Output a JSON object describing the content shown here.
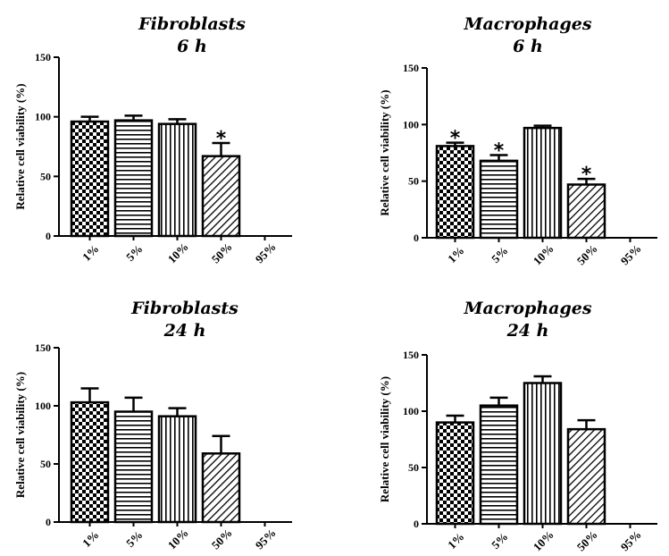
{
  "chart_data": [
    {
      "type": "bar",
      "title": "Fibroblasts",
      "subtitle": "6 h",
      "ylabel": "Relative cell viability (%)",
      "categories": [
        "1%",
        "5%",
        "10%",
        "50%",
        "95%"
      ],
      "values": [
        96,
        97,
        94,
        67,
        null
      ],
      "errors": [
        4,
        4,
        4,
        11,
        null
      ],
      "significant": [
        false,
        false,
        false,
        true,
        false
      ],
      "patterns": [
        "checker",
        "horizontal",
        "vertical",
        "diagonal",
        "none"
      ],
      "ylim": [
        0,
        150
      ],
      "yticks": [
        "0",
        "50",
        "100",
        "150"
      ]
    },
    {
      "type": "bar",
      "title": "Macrophages",
      "subtitle": "6 h",
      "ylabel": "Relative cell viability (%)",
      "categories": [
        "1%",
        "5%",
        "10%",
        "50%",
        "95%"
      ],
      "values": [
        81,
        68,
        97,
        47,
        null
      ],
      "errors": [
        3,
        5,
        2,
        5,
        null
      ],
      "significant": [
        true,
        true,
        false,
        true,
        false
      ],
      "patterns": [
        "checker",
        "horizontal",
        "vertical",
        "diagonal",
        "none"
      ],
      "ylim": [
        0,
        150
      ],
      "yticks": [
        "0",
        "50",
        "100",
        "150"
      ]
    },
    {
      "type": "bar",
      "title": "Fibroblasts",
      "subtitle": "24 h",
      "ylabel": "Relative cell viability (%)",
      "categories": [
        "1%",
        "5%",
        "10%",
        "50%",
        "95%"
      ],
      "values": [
        103,
        95,
        91,
        59,
        null
      ],
      "errors": [
        12,
        12,
        7,
        15,
        null
      ],
      "significant": [
        false,
        false,
        false,
        false,
        false
      ],
      "patterns": [
        "checker",
        "horizontal",
        "vertical",
        "diagonal",
        "none"
      ],
      "ylim": [
        0,
        150
      ],
      "yticks": [
        "0",
        "50",
        "100",
        "150"
      ]
    },
    {
      "type": "bar",
      "title": "Macrophages",
      "subtitle": "24 h",
      "ylabel": "Relative cell viability (%)",
      "categories": [
        "1%",
        "5%",
        "10%",
        "50%",
        "95%"
      ],
      "values": [
        90,
        105,
        125,
        84,
        null
      ],
      "errors": [
        6,
        7,
        6,
        8,
        null
      ],
      "significant": [
        false,
        false,
        false,
        false,
        false
      ],
      "patterns": [
        "checker",
        "horizontal",
        "vertical",
        "diagonal",
        "none"
      ],
      "ylim": [
        0,
        150
      ],
      "yticks": [
        "0",
        "50",
        "100",
        "150"
      ]
    }
  ],
  "significance_marker": "*"
}
